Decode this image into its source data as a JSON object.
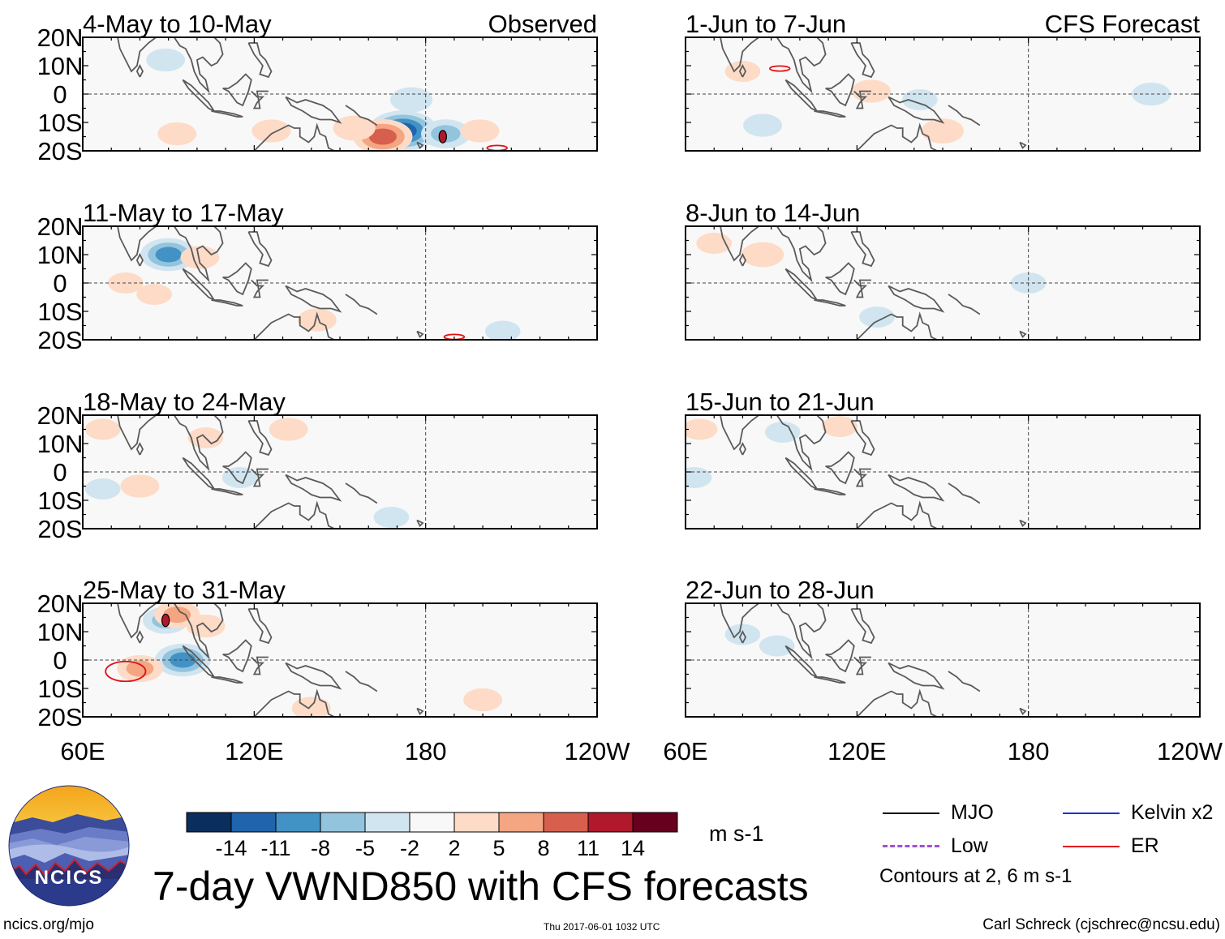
{
  "title": "7-day VWND850 with CFS forecasts",
  "site": "ncics.org/mjo",
  "timestamp": "Thu 2017-06-01 1032 UTC",
  "credit": "Carl Schreck (cjschrec@ncsu.edu)",
  "logo_text": "NCICS",
  "units": "m s-1",
  "contours_note": "Contours at 2, 6 m s-1",
  "column_headers": {
    "observed": "Observed",
    "forecast": "CFS Forecast"
  },
  "legend": [
    {
      "label": "MJO",
      "color": "#000000"
    },
    {
      "label": "Kelvin x2",
      "color": "#1432d8"
    },
    {
      "label": "Low",
      "color": "#a24ed8"
    },
    {
      "label": "ER",
      "color": "#e01010"
    }
  ],
  "colorbar": {
    "ticks": [
      "-14",
      "-11",
      "-8",
      "-5",
      "-2",
      "2",
      "5",
      "8",
      "11",
      "14"
    ],
    "colors": [
      "#0a2e5e",
      "#1f64ac",
      "#4292c6",
      "#93c4de",
      "#d1e5f0",
      "#f8f8f8",
      "#fddbc7",
      "#f4a582",
      "#d6604d",
      "#b2182b",
      "#67001f"
    ]
  },
  "chart_data": {
    "type": "heatmap",
    "variable": "VWND850",
    "x_ticks": [
      "60E",
      "120E",
      "180",
      "120W"
    ],
    "y_ticks": [
      "20N",
      "10N",
      "0",
      "10S",
      "20S"
    ],
    "xlim": [
      60,
      240
    ],
    "ylim": [
      -20,
      20
    ],
    "panels": [
      {
        "column": "observed",
        "title": "4-May to 10-May",
        "features": [
          {
            "lon": 172,
            "lat": -13,
            "value": -12
          },
          {
            "lon": 165,
            "lat": -15,
            "value": 9
          },
          {
            "lon": 155,
            "lat": -12,
            "value": 4
          },
          {
            "lon": 187,
            "lat": -14,
            "value": -6
          },
          {
            "lon": 175,
            "lat": -2,
            "value": -4
          },
          {
            "lon": 199,
            "lat": -13,
            "value": 3
          },
          {
            "lon": 89,
            "lat": 12,
            "value": -3
          },
          {
            "lon": 93,
            "lat": -14,
            "value": 3
          },
          {
            "lon": 126,
            "lat": -13,
            "value": 3
          }
        ],
        "contours": [
          {
            "type": "ER",
            "lon": 205,
            "lat": -19
          },
          {
            "type": "MJO",
            "lon": 186,
            "lat": -15
          }
        ]
      },
      {
        "column": "forecast",
        "title": "1-Jun to 7-Jun",
        "features": [
          {
            "lon": 87,
            "lat": -11,
            "value": -3
          },
          {
            "lon": 150,
            "lat": -13,
            "value": 4
          },
          {
            "lon": 125,
            "lat": 1,
            "value": 3
          },
          {
            "lon": 223,
            "lat": 0,
            "value": -3
          },
          {
            "lon": 80,
            "lat": 8,
            "value": 2
          },
          {
            "lon": 142,
            "lat": -2,
            "value": -2
          }
        ],
        "contours": [
          {
            "type": "ER",
            "lon": 93,
            "lat": 9
          }
        ]
      },
      {
        "column": "observed",
        "title": "11-May to 17-May",
        "features": [
          {
            "lon": 90,
            "lat": 10,
            "value": -8
          },
          {
            "lon": 101,
            "lat": 9,
            "value": 3
          },
          {
            "lon": 142,
            "lat": -13,
            "value": 3
          },
          {
            "lon": 207,
            "lat": -17,
            "value": -2
          },
          {
            "lon": 75,
            "lat": 0,
            "value": 2
          },
          {
            "lon": 85,
            "lat": -4,
            "value": 2
          }
        ],
        "contours": [
          {
            "type": "ER",
            "lon": 190,
            "lat": -19
          }
        ]
      },
      {
        "column": "forecast",
        "title": "8-Jun to 14-Jun",
        "features": [
          {
            "lon": 87,
            "lat": 10,
            "value": 4
          },
          {
            "lon": 70,
            "lat": 14,
            "value": 2
          },
          {
            "lon": 127,
            "lat": -12,
            "value": -2
          },
          {
            "lon": 180,
            "lat": 0,
            "value": -2
          }
        ],
        "contours": []
      },
      {
        "column": "observed",
        "title": "18-May to 24-May",
        "features": [
          {
            "lon": 80,
            "lat": -5,
            "value": 3
          },
          {
            "lon": 132,
            "lat": 15,
            "value": 3
          },
          {
            "lon": 103,
            "lat": 12,
            "value": 2
          },
          {
            "lon": 67,
            "lat": 15,
            "value": 2
          },
          {
            "lon": 67,
            "lat": -6,
            "value": -2
          },
          {
            "lon": 115,
            "lat": -2,
            "value": -2
          },
          {
            "lon": 168,
            "lat": -16,
            "value": -2
          }
        ],
        "contours": []
      },
      {
        "column": "forecast",
        "title": "15-Jun to 21-Jun",
        "features": [
          {
            "lon": 65,
            "lat": 15,
            "value": 2
          },
          {
            "lon": 114,
            "lat": 16,
            "value": 2
          },
          {
            "lon": 63,
            "lat": -2,
            "value": -2
          },
          {
            "lon": 94,
            "lat": 14,
            "value": -2
          }
        ],
        "contours": []
      },
      {
        "column": "observed",
        "title": "25-May to 31-May",
        "features": [
          {
            "lon": 95,
            "lat": 0,
            "value": -8
          },
          {
            "lon": 80,
            "lat": -3,
            "value": 5
          },
          {
            "lon": 89,
            "lat": 14,
            "value": -5
          },
          {
            "lon": 103,
            "lat": 12,
            "value": 3
          },
          {
            "lon": 93,
            "lat": 16,
            "value": 5
          },
          {
            "lon": 200,
            "lat": -14,
            "value": 3
          },
          {
            "lon": 140,
            "lat": -17,
            "value": 3
          }
        ],
        "contours": [
          {
            "type": "ER",
            "lon": 75,
            "lat": -4
          },
          {
            "type": "MJO",
            "lon": 89,
            "lat": 14
          }
        ]
      },
      {
        "column": "forecast",
        "title": "22-Jun to 28-Jun",
        "features": [
          {
            "lon": 80,
            "lat": 9,
            "value": -2
          },
          {
            "lon": 92,
            "lat": 5,
            "value": -2
          }
        ],
        "contours": []
      }
    ]
  }
}
